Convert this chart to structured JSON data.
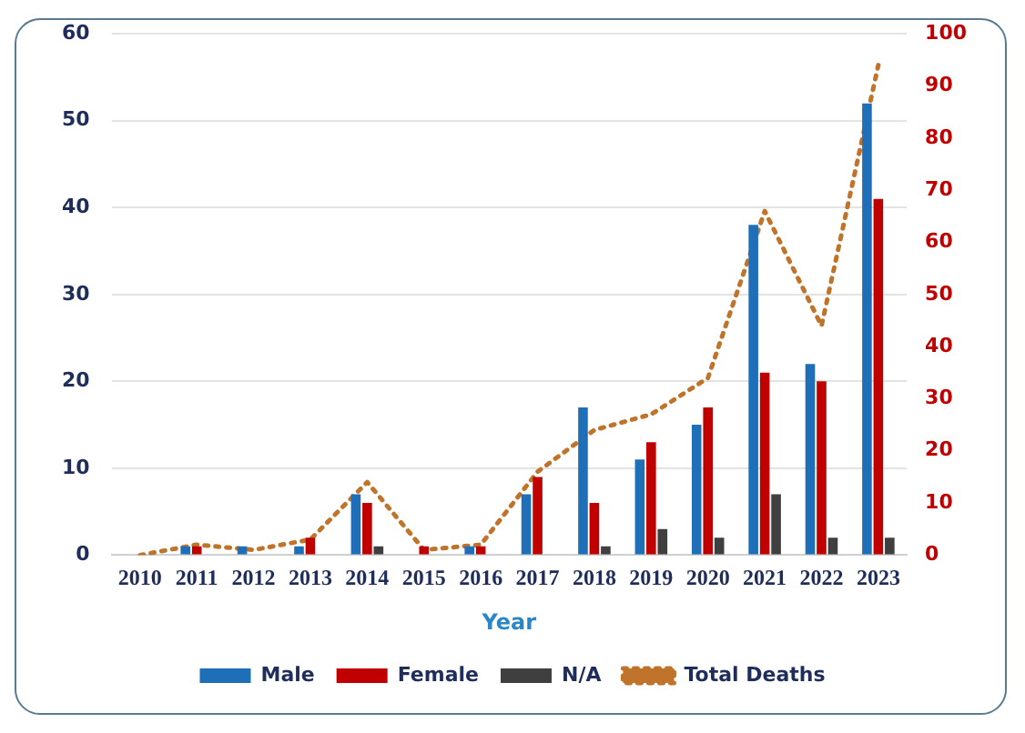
{
  "chart_data": {
    "type": "bar",
    "xlabel": "Year",
    "categories": [
      "2010",
      "2011",
      "2012",
      "2013",
      "2014",
      "2015",
      "2016",
      "2017",
      "2018",
      "2019",
      "2020",
      "2021",
      "2022",
      "2023"
    ],
    "series": [
      {
        "name": "Male",
        "color": "#1f6fb8",
        "values": [
          0,
          1,
          1,
          1,
          7,
          0,
          1,
          7,
          17,
          11,
          15,
          38,
          22,
          52
        ]
      },
      {
        "name": "Female",
        "color": "#c00000",
        "values": [
          0,
          1,
          0,
          2,
          6,
          1,
          1,
          9,
          6,
          13,
          17,
          21,
          20,
          41
        ]
      },
      {
        "name": "N/A",
        "color": "#3f3f3f",
        "values": [
          0,
          0,
          0,
          0,
          1,
          0,
          0,
          0,
          1,
          3,
          2,
          7,
          2,
          2
        ]
      },
      {
        "name": "Total Deaths",
        "type": "line",
        "axis": "y2",
        "color": "#c0732a",
        "line_style": "dotted",
        "marker": "none",
        "values": [
          0,
          2,
          1,
          3,
          14,
          1,
          2,
          16,
          24,
          27,
          34,
          66,
          44,
          94
        ]
      }
    ],
    "ylim": [
      0,
      60
    ],
    "yticks": [
      0,
      10,
      20,
      30,
      40,
      50,
      60
    ],
    "y2lim": [
      0,
      100
    ],
    "y2ticks": [
      0,
      10,
      20,
      30,
      40,
      50,
      60,
      70,
      80,
      90,
      100
    ],
    "grid": "y",
    "legend": "bottom"
  }
}
